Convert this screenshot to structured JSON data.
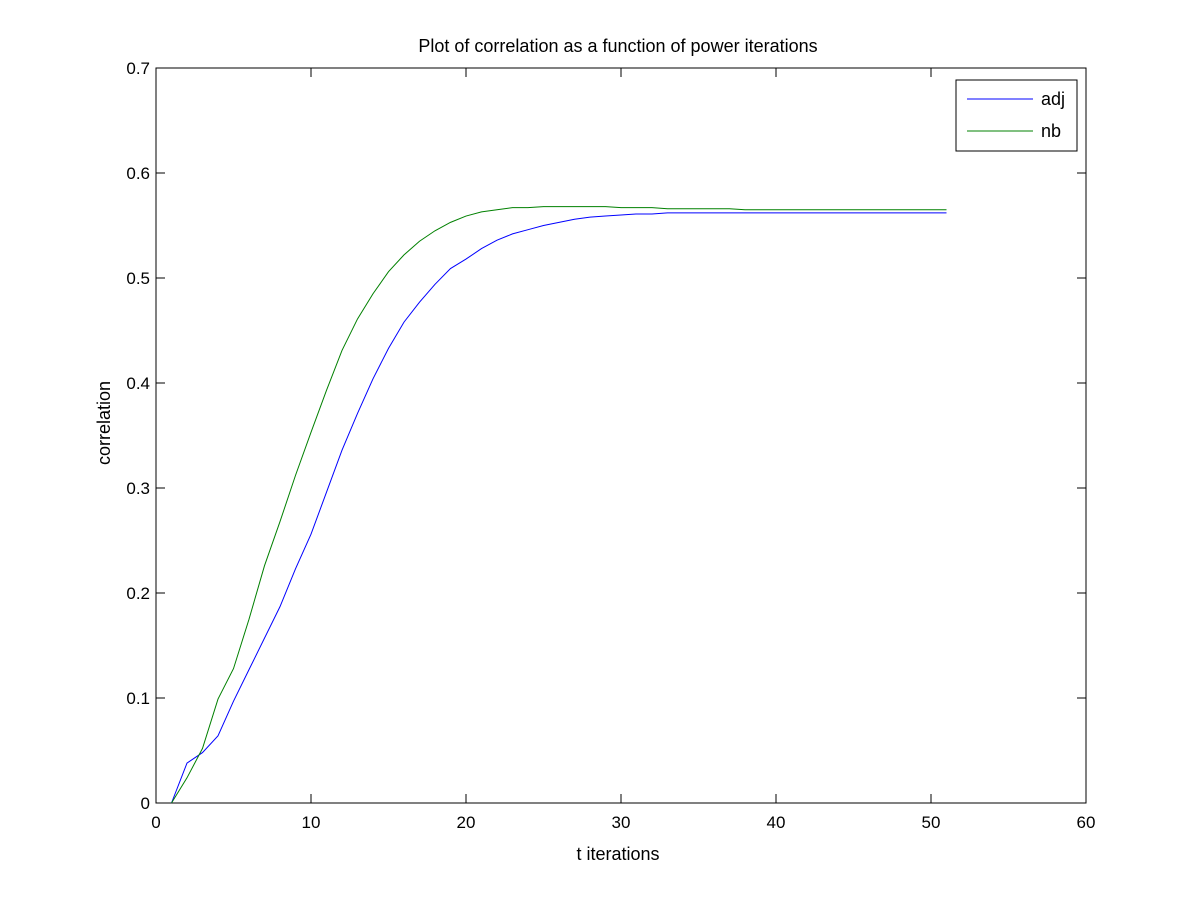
{
  "chart_data": {
    "type": "line",
    "title": "Plot of correlation as a function of power iterations",
    "xlabel": "t iterations",
    "ylabel": "correlation",
    "xlim": [
      0,
      60
    ],
    "ylim": [
      0,
      0.7
    ],
    "xticks": [
      0,
      10,
      20,
      30,
      40,
      50,
      60
    ],
    "yticks": [
      0,
      0.1,
      0.2,
      0.3,
      0.4,
      0.5,
      0.6,
      0.7
    ],
    "xtick_labels": [
      "0",
      "10",
      "20",
      "30",
      "40",
      "50",
      "60"
    ],
    "ytick_labels": [
      "0",
      "0.1",
      "0.2",
      "0.3",
      "0.4",
      "0.5",
      "0.6",
      "0.7"
    ],
    "grid": false,
    "legend_position": "top-right",
    "x": [
      1,
      2,
      3,
      4,
      5,
      6,
      7,
      8,
      9,
      10,
      11,
      12,
      13,
      14,
      15,
      16,
      17,
      18,
      19,
      20,
      21,
      22,
      23,
      24,
      25,
      26,
      27,
      28,
      29,
      30,
      31,
      32,
      33,
      34,
      35,
      36,
      37,
      38,
      39,
      40,
      41,
      42,
      43,
      44,
      45,
      46,
      47,
      48,
      49,
      50,
      51
    ],
    "series": [
      {
        "name": "adj",
        "color": "#0000ff",
        "values": [
          0.0,
          0.038,
          0.048,
          0.064,
          0.097,
          0.127,
          0.157,
          0.187,
          0.223,
          0.256,
          0.296,
          0.336,
          0.371,
          0.404,
          0.433,
          0.458,
          0.477,
          0.494,
          0.509,
          0.518,
          0.528,
          0.536,
          0.542,
          0.546,
          0.55,
          0.553,
          0.556,
          0.558,
          0.559,
          0.56,
          0.561,
          0.561,
          0.562,
          0.562,
          0.562,
          0.562,
          0.562,
          0.562,
          0.562,
          0.562,
          0.562,
          0.562,
          0.562,
          0.562,
          0.562,
          0.562,
          0.562,
          0.562,
          0.562,
          0.562,
          0.562
        ]
      },
      {
        "name": "nb",
        "color": "#008000",
        "values": [
          0.0,
          0.024,
          0.052,
          0.099,
          0.128,
          0.175,
          0.226,
          0.268,
          0.312,
          0.353,
          0.393,
          0.431,
          0.461,
          0.485,
          0.506,
          0.522,
          0.535,
          0.545,
          0.553,
          0.559,
          0.563,
          0.565,
          0.567,
          0.567,
          0.568,
          0.568,
          0.568,
          0.568,
          0.568,
          0.567,
          0.567,
          0.567,
          0.566,
          0.566,
          0.566,
          0.566,
          0.566,
          0.565,
          0.565,
          0.565,
          0.565,
          0.565,
          0.565,
          0.565,
          0.565,
          0.565,
          0.565,
          0.565,
          0.565,
          0.565,
          0.565
        ]
      }
    ]
  }
}
